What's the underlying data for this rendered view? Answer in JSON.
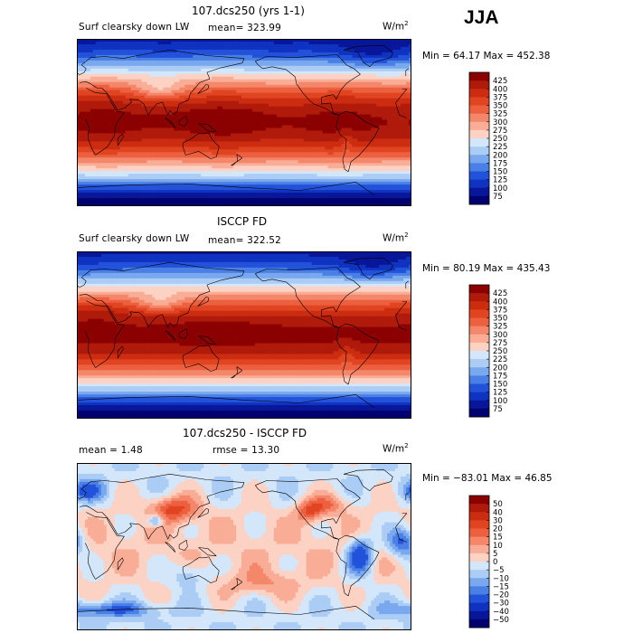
{
  "season": "JJA",
  "panels": [
    {
      "title": "107.dcs250 (yrs 1-1)",
      "variable": "Surf clearsky down LW",
      "stat_text": "mean=  323.99",
      "units_base": "W/m",
      "units_exp": "2",
      "minmax": "Min =  64.17 Max = 452.38"
    },
    {
      "title": "ISCCP FD",
      "variable": "Surf clearsky down LW",
      "stat_text": "mean=  322.52",
      "units_base": "W/m",
      "units_exp": "2",
      "minmax": "Min =  80.19 Max = 435.43"
    },
    {
      "title": "107.dcs250 - ISCCP FD",
      "stat_text": "mean =    1.48",
      "rmse_text": "rmse =   13.30",
      "units_base": "W/m",
      "units_exp": "2",
      "minmax": "Min = −83.01 Max =   46.85"
    }
  ],
  "chart_data": [
    {
      "type": "heatmap",
      "title": "107.dcs250 (yrs 1-1)",
      "subtitle": "Surf clearsky down LW",
      "mean": 323.99,
      "min": 64.17,
      "max": 452.38,
      "units": "W/m2",
      "colorbar_levels": [
        "425",
        "400",
        "375",
        "350",
        "325",
        "300",
        "275",
        "250",
        "225",
        "200",
        "175",
        "150",
        "125",
        "100",
        "75"
      ],
      "colorbar_colors": [
        "#8b0000",
        "#b01a0a",
        "#cc2c10",
        "#e04420",
        "#ec6040",
        "#f4866a",
        "#f9ad96",
        "#fbd2c4",
        "#d3e6fa",
        "#abccf4",
        "#7aa8ee",
        "#4a80e6",
        "#2352da",
        "#1032c0",
        "#08169a",
        "#000070"
      ]
    },
    {
      "type": "heatmap",
      "title": "ISCCP FD",
      "subtitle": "Surf clearsky down LW",
      "mean": 322.52,
      "min": 80.19,
      "max": 435.43,
      "units": "W/m2",
      "colorbar_levels": [
        "425",
        "400",
        "375",
        "350",
        "325",
        "300",
        "275",
        "250",
        "225",
        "200",
        "175",
        "150",
        "125",
        "100",
        "75"
      ],
      "colorbar_colors": [
        "#8b0000",
        "#b01a0a",
        "#cc2c10",
        "#e04420",
        "#ec6040",
        "#f4866a",
        "#f9ad96",
        "#fbd2c4",
        "#d3e6fa",
        "#abccf4",
        "#7aa8ee",
        "#4a80e6",
        "#2352da",
        "#1032c0",
        "#08169a",
        "#000070"
      ]
    },
    {
      "type": "heatmap",
      "title": "107.dcs250 - ISCCP FD",
      "mean": 1.48,
      "rmse": 13.3,
      "min": -83.01,
      "max": 46.85,
      "units": "W/m2",
      "colorbar_levels": [
        "50",
        "40",
        "30",
        "20",
        "15",
        "10",
        "5",
        "0",
        "−5",
        "−10",
        "−15",
        "−20",
        "−30",
        "−40",
        "−50"
      ],
      "colorbar_colors": [
        "#8b0000",
        "#b01a0a",
        "#cc2c10",
        "#e04420",
        "#ec6040",
        "#f4866a",
        "#f9ad96",
        "#fbd2c4",
        "#d3e6fa",
        "#abccf4",
        "#7aa8ee",
        "#4a80e6",
        "#2352da",
        "#1032c0",
        "#08169a",
        "#000070"
      ]
    }
  ]
}
